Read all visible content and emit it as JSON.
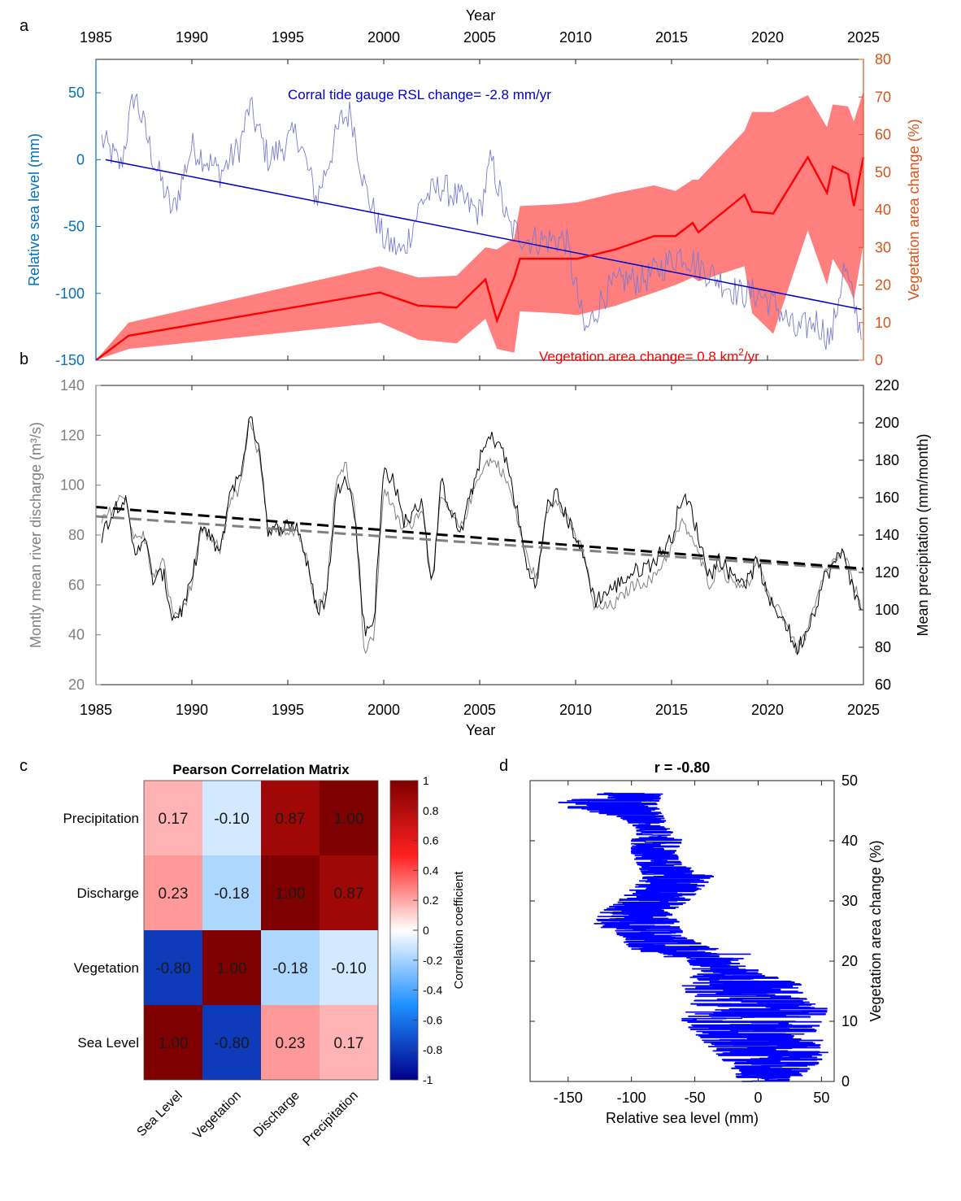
{
  "panel_labels": {
    "a": "a",
    "b": "b",
    "c": "c",
    "d": "d"
  },
  "colors": {
    "rsl_axis": "#0072BD",
    "veg_axis": "#D95319",
    "rsl_trend": "#0000CC",
    "rsl_series": "#7B7BD0",
    "veg_band": "#FF7F7F",
    "veg_line": "#FF0000",
    "discharge": "#808080",
    "precip": "#000000",
    "scatter": "#0000FF"
  },
  "chart_data": [
    {
      "id": "a",
      "type": "line",
      "title": "",
      "xlabel": "Year",
      "x_axis_position": "top",
      "xlim": [
        1985,
        2025
      ],
      "xticks": [
        1985,
        1990,
        1995,
        2000,
        2005,
        2010,
        2015,
        2020,
        2025
      ],
      "left_axis": {
        "label": "Relative sea level (mm)",
        "ylim": [
          -150,
          75
        ],
        "ticks": [
          -150,
          -100,
          -50,
          0,
          50
        ]
      },
      "right_axis": {
        "label": "Vegetation area change (%)",
        "ylim": [
          0,
          80
        ],
        "ticks": [
          0,
          10,
          20,
          30,
          40,
          50,
          60,
          70,
          80
        ]
      },
      "annotations": {
        "rsl": "Corral tide gauge RSL change= -2.8 mm/yr",
        "veg_prefix": "Vegetation  area  change=  0.8  km",
        "veg_sup": "2",
        "veg_suffix": "/yr"
      },
      "rsl_trend": {
        "x": [
          1985.5,
          2024.9
        ],
        "y": [
          0,
          -112
        ]
      },
      "rsl_keypoints": {
        "x": [
          1985.3,
          1986.3,
          1987,
          1988,
          1989,
          1990,
          1991.5,
          1992.5,
          1993,
          1994,
          1995.5,
          1996.5,
          1997.8,
          1998.3,
          1999,
          2000,
          2001,
          2002,
          2003,
          2004,
          2005,
          2005.6,
          2006.5,
          2007.5,
          2008.5,
          2009.5,
          2010.5,
          2011.5,
          2012.5,
          2013.5,
          2014.5,
          2015.5,
          2016.5,
          2017.5,
          2018.5,
          2019.5,
          2020.5,
          2021.5,
          2022.5,
          2023.3,
          2024,
          2024.9
        ],
        "y": [
          15,
          -5,
          50,
          0,
          -40,
          10,
          -10,
          10,
          40,
          0,
          20,
          -30,
          30,
          35,
          -20,
          -60,
          -70,
          -30,
          -20,
          -30,
          -40,
          0,
          -50,
          -60,
          -60,
          -60,
          -130,
          -100,
          -90,
          -90,
          -80,
          -70,
          -80,
          -90,
          -100,
          -100,
          -110,
          -130,
          -120,
          -135,
          -80,
          -130
        ]
      },
      "vegetation": {
        "x": [
          1985,
          1986.7,
          1999.8,
          2001.8,
          2003.8,
          2005.3,
          2005.9,
          2006.8,
          2007.1,
          2009.1,
          2010.1,
          2012.1,
          2014.1,
          2015.2,
          2016.1,
          2016.4,
          2018.8,
          2019.2,
          2020.3,
          2022.1,
          2023.1,
          2023.4,
          2024.2,
          2024.5,
          2025
        ],
        "mean": [
          0,
          6.5,
          18,
          14.5,
          14,
          21.5,
          10.5,
          22,
          27,
          27,
          27,
          29.5,
          33,
          33,
          36.5,
          34,
          44,
          39.5,
          39,
          54,
          44.5,
          51.5,
          49.5,
          41,
          54
        ],
        "upper": [
          0,
          10,
          25,
          22,
          22.5,
          30,
          29.5,
          32.5,
          41,
          41.5,
          42,
          44.5,
          46.5,
          45,
          48,
          48,
          61,
          66,
          66,
          70.5,
          62,
          68,
          67.5,
          63.5,
          71.5
        ],
        "lower": [
          0,
          3,
          10,
          5.5,
          4.5,
          11,
          3,
          2,
          13,
          12.5,
          12,
          14.5,
          18,
          20,
          22,
          21,
          25,
          12.5,
          7,
          34.5,
          20,
          27,
          20,
          16,
          31
        ]
      }
    },
    {
      "id": "b",
      "type": "line",
      "title": "",
      "xlabel": "Year",
      "xlim": [
        1985,
        2025
      ],
      "xticks": [
        1985,
        1990,
        1995,
        2000,
        2005,
        2010,
        2015,
        2020,
        2025
      ],
      "left_axis": {
        "label": "Montly  mean  river  discharge  (m³/s)",
        "ylim": [
          20,
          140
        ],
        "ticks": [
          20,
          40,
          60,
          80,
          100,
          120,
          140
        ]
      },
      "right_axis": {
        "label": "Mean precipitation (mm/month)",
        "ylim": [
          60,
          220
        ],
        "ticks": [
          60,
          80,
          100,
          120,
          140,
          160,
          180,
          200,
          220
        ]
      },
      "discharge_trend": {
        "x": [
          1985,
          2025
        ],
        "y": [
          87.5,
          66
        ]
      },
      "precip_trend": {
        "x": [
          1985,
          2025
        ],
        "y": [
          155,
          122
        ]
      },
      "discharge": {
        "x": [
          1985.3,
          1986,
          1986.5,
          1987,
          1987.5,
          1988,
          1988.5,
          1989,
          1989.5,
          1990,
          1990.5,
          1991.5,
          1992,
          1992.5,
          1993,
          1993.5,
          1994,
          1994.7,
          1995.5,
          1996,
          1996.5,
          1997,
          1997.5,
          1998,
          1998.5,
          1999,
          1999.5,
          2000,
          2000.5,
          2001,
          2001.5,
          2002,
          2002.5,
          2003,
          2004,
          2005,
          2005.5,
          2006,
          2006.5,
          2007,
          2007.5,
          2008,
          2008.5,
          2009,
          2009.5,
          2010,
          2010.5,
          2011,
          2012,
          2013,
          2014,
          2015,
          2015.5,
          2016,
          2016.5,
          2017,
          2017.5,
          2018,
          2019,
          2019.5,
          2020,
          2020.5,
          2021,
          2021.5,
          2022,
          2022.5,
          2023,
          2023.5,
          2024,
          2024.5,
          2025
        ],
        "y": [
          85,
          92,
          97,
          78,
          80,
          62,
          70,
          48,
          50,
          60,
          82,
          74,
          95,
          98,
          126,
          112,
          80,
          82,
          82,
          70,
          52,
          56,
          100,
          110,
          90,
          32,
          40,
          100,
          90,
          82,
          85,
          92,
          62,
          95,
          82,
          105,
          110,
          108,
          100,
          85,
          70,
          62,
          90,
          95,
          88,
          80,
          70,
          50,
          52,
          60,
          62,
          75,
          85,
          80,
          70,
          60,
          68,
          62,
          60,
          70,
          55,
          52,
          45,
          34,
          40,
          52,
          65,
          70,
          72,
          60,
          50
        ]
      },
      "precipitation": {
        "x": [
          1985.3,
          1986,
          1986.5,
          1987,
          1987.5,
          1988,
          1988.5,
          1989,
          1989.5,
          1990,
          1990.5,
          1991.5,
          1992,
          1992.5,
          1993,
          1993.5,
          1994,
          1994.7,
          1995.5,
          1996,
          1996.5,
          1997,
          1997.5,
          1998,
          1998.5,
          1999,
          1999.5,
          2000,
          2000.5,
          2001,
          2001.5,
          2002,
          2002.5,
          2003,
          2004,
          2005,
          2005.5,
          2006,
          2006.5,
          2007,
          2007.5,
          2008,
          2008.5,
          2009,
          2009.5,
          2010,
          2010.5,
          2011,
          2012,
          2013,
          2014,
          2015,
          2015.5,
          2016,
          2016.5,
          2017,
          2017.5,
          2018,
          2019,
          2019.5,
          2020,
          2020.5,
          2021,
          2021.5,
          2022,
          2022.5,
          2023,
          2023.5,
          2024,
          2024.5,
          2025
        ],
        "y": [
          140,
          155,
          160,
          130,
          140,
          115,
          120,
          95,
          100,
          115,
          145,
          130,
          165,
          170,
          202,
          190,
          140,
          145,
          145,
          125,
          100,
          105,
          160,
          175,
          150,
          88,
          95,
          175,
          170,
          148,
          150,
          160,
          110,
          168,
          140,
          180,
          192,
          190,
          175,
          150,
          120,
          115,
          155,
          162,
          150,
          140,
          125,
          105,
          112,
          120,
          125,
          138,
          160,
          155,
          135,
          118,
          128,
          120,
          115,
          128,
          105,
          100,
          92,
          78,
          88,
          102,
          118,
          125,
          132,
          108,
          100
        ]
      }
    },
    {
      "id": "c",
      "type": "heatmap",
      "title": "Pearson Correlation Matrix",
      "row_labels": [
        "Precipitation",
        "Discharge",
        "Vegetation",
        "Sea Level"
      ],
      "col_labels": [
        "Sea Level",
        "Vegetation",
        "Discharge",
        "Precipitation"
      ],
      "values": [
        [
          0.17,
          -0.1,
          0.87,
          1.0
        ],
        [
          0.23,
          -0.18,
          1.0,
          0.87
        ],
        [
          -0.8,
          1.0,
          -0.18,
          -0.1
        ],
        [
          1.0,
          -0.8,
          0.23,
          0.17
        ]
      ],
      "labels": [
        [
          "0.17",
          "-0.10",
          "0.87",
          "1.00"
        ],
        [
          "0.23",
          "-0.18",
          "1.00",
          "0.87"
        ],
        [
          "-0.80",
          "1.00",
          "-0.18",
          "-0.10"
        ],
        [
          "1.00",
          "-0.80",
          "0.23",
          "0.17"
        ]
      ],
      "colorbar": {
        "label": "Correlation coefficient",
        "range": [
          -1,
          1
        ],
        "ticks": [
          "1",
          "0.8",
          "0.6",
          "0.4",
          "0.2",
          "0",
          "-0.2",
          "-0.4",
          "-0.6",
          "-0.8",
          "-1"
        ]
      }
    },
    {
      "id": "d",
      "type": "line",
      "title": "r = -0.80",
      "xlabel": "Relative sea level (mm)",
      "ylabel": "Vegetation area change (%)",
      "xlim": [
        -180,
        60
      ],
      "ylim": [
        0,
        50
      ],
      "xticks": [
        -150,
        -100,
        -50,
        0,
        50
      ],
      "yticks": [
        0,
        10,
        20,
        30,
        40,
        50
      ],
      "trace_keypoints": {
        "y": [
          0,
          2,
          4,
          6,
          8,
          10,
          12,
          14,
          16,
          18,
          20,
          21,
          22,
          24,
          26,
          28,
          30,
          32,
          34,
          36,
          38,
          40,
          42,
          44,
          46,
          48
        ],
        "x_min": [
          -15,
          -20,
          -30,
          -40,
          -50,
          -60,
          -60,
          -55,
          -60,
          -50,
          -55,
          -80,
          -100,
          -110,
          -130,
          -125,
          -110,
          -100,
          -90,
          -95,
          -100,
          -100,
          -95,
          -110,
          -165,
          -120
        ],
        "x_max": [
          30,
          40,
          55,
          55,
          45,
          50,
          55,
          35,
          35,
          5,
          -20,
          5,
          -30,
          -60,
          -60,
          -70,
          -55,
          -45,
          -35,
          -60,
          -65,
          -60,
          -70,
          -75,
          -80,
          -75
        ]
      }
    }
  ]
}
